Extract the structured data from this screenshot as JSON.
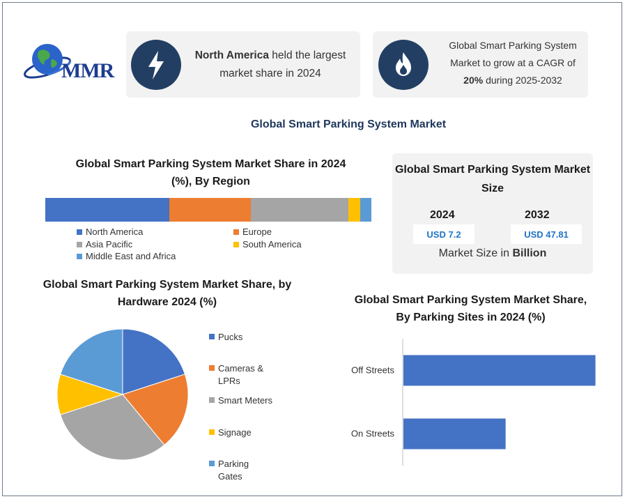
{
  "logo": {
    "text": "MMR"
  },
  "card_region": {
    "icon": "lightning-icon",
    "bold": "North America",
    "rest": " held the largest market share in 2024"
  },
  "card_cagr": {
    "icon": "flame-icon",
    "line1": "Global Smart Parking System Market to grow at a CAGR of ",
    "bold": "20%",
    "line2": " during 2025-2032"
  },
  "main_title": "Global Smart Parking System Market",
  "colors": {
    "accent": "#223f63",
    "blue": "#4472c4",
    "orange": "#ed7d31",
    "gray": "#a5a5a5",
    "yellow": "#ffc000",
    "lightblue": "#5b9bd5"
  },
  "market_size": {
    "title": "Global Smart Parking System Market Size",
    "year1": "2024",
    "year2": "2032",
    "value1": "USD 7.2",
    "value2": "USD 47.81",
    "unit_prefix": "Market Size in ",
    "unit_bold": "Billion"
  },
  "chart_data": [
    {
      "type": "bar",
      "orientation": "stacked-horizontal",
      "title": "Global Smart Parking System Market Share in 2024 (%), By Region",
      "categories": [
        "North America",
        "Europe",
        "Asia Pacific",
        "South America",
        "Middle East and Africa"
      ],
      "values": [
        38,
        25,
        30,
        3.5,
        3.5
      ],
      "legend": "bottom"
    },
    {
      "type": "pie",
      "title": "Global Smart Parking System Market Share, by Hardware 2024 (%)",
      "categories": [
        "Pucks",
        "Cameras & LPRs",
        "Smart Meters",
        "Signage",
        "Parking Gates"
      ],
      "values": [
        20,
        19,
        31,
        10,
        20
      ],
      "legend": "right"
    },
    {
      "type": "bar",
      "orientation": "horizontal",
      "title": "Global Smart Parking System Market Share, By Parking Sites in 2024 (%)",
      "categories": [
        "Off Streets",
        "On Streets"
      ],
      "values": [
        62,
        33
      ],
      "xlim": [
        0,
        63
      ]
    }
  ]
}
